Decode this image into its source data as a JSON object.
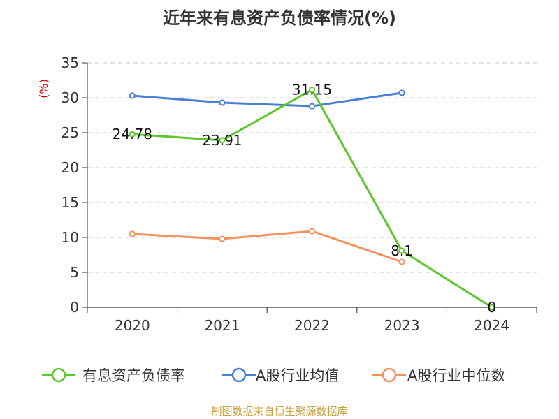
{
  "chart_data": {
    "type": "line",
    "title": "近年来有息资产负债率情况(%)",
    "ylabel": "(%)",
    "ylim": [
      0,
      35
    ],
    "yticks": [
      0,
      5,
      10,
      15,
      20,
      25,
      30,
      35
    ],
    "categories": [
      "2020",
      "2021",
      "2022",
      "2023",
      "2024"
    ],
    "grid": true,
    "legend_position": "bottom",
    "series": [
      {
        "name": "有息资产负债率",
        "color": "#5cc72b",
        "values": [
          24.78,
          23.91,
          31.15,
          8.1,
          0
        ],
        "labels": [
          "24.78",
          "23.91",
          "31.15",
          "8.1",
          "0"
        ]
      },
      {
        "name": "A股行业均值",
        "color": "#4a7fd8",
        "values": [
          30.3,
          29.3,
          28.8,
          30.7,
          null
        ]
      },
      {
        "name": "A股行业中位数",
        "color": "#f4915e",
        "values": [
          10.5,
          9.8,
          10.9,
          6.5,
          null
        ]
      }
    ],
    "source": "制图数据来自恒生聚源数据库"
  }
}
